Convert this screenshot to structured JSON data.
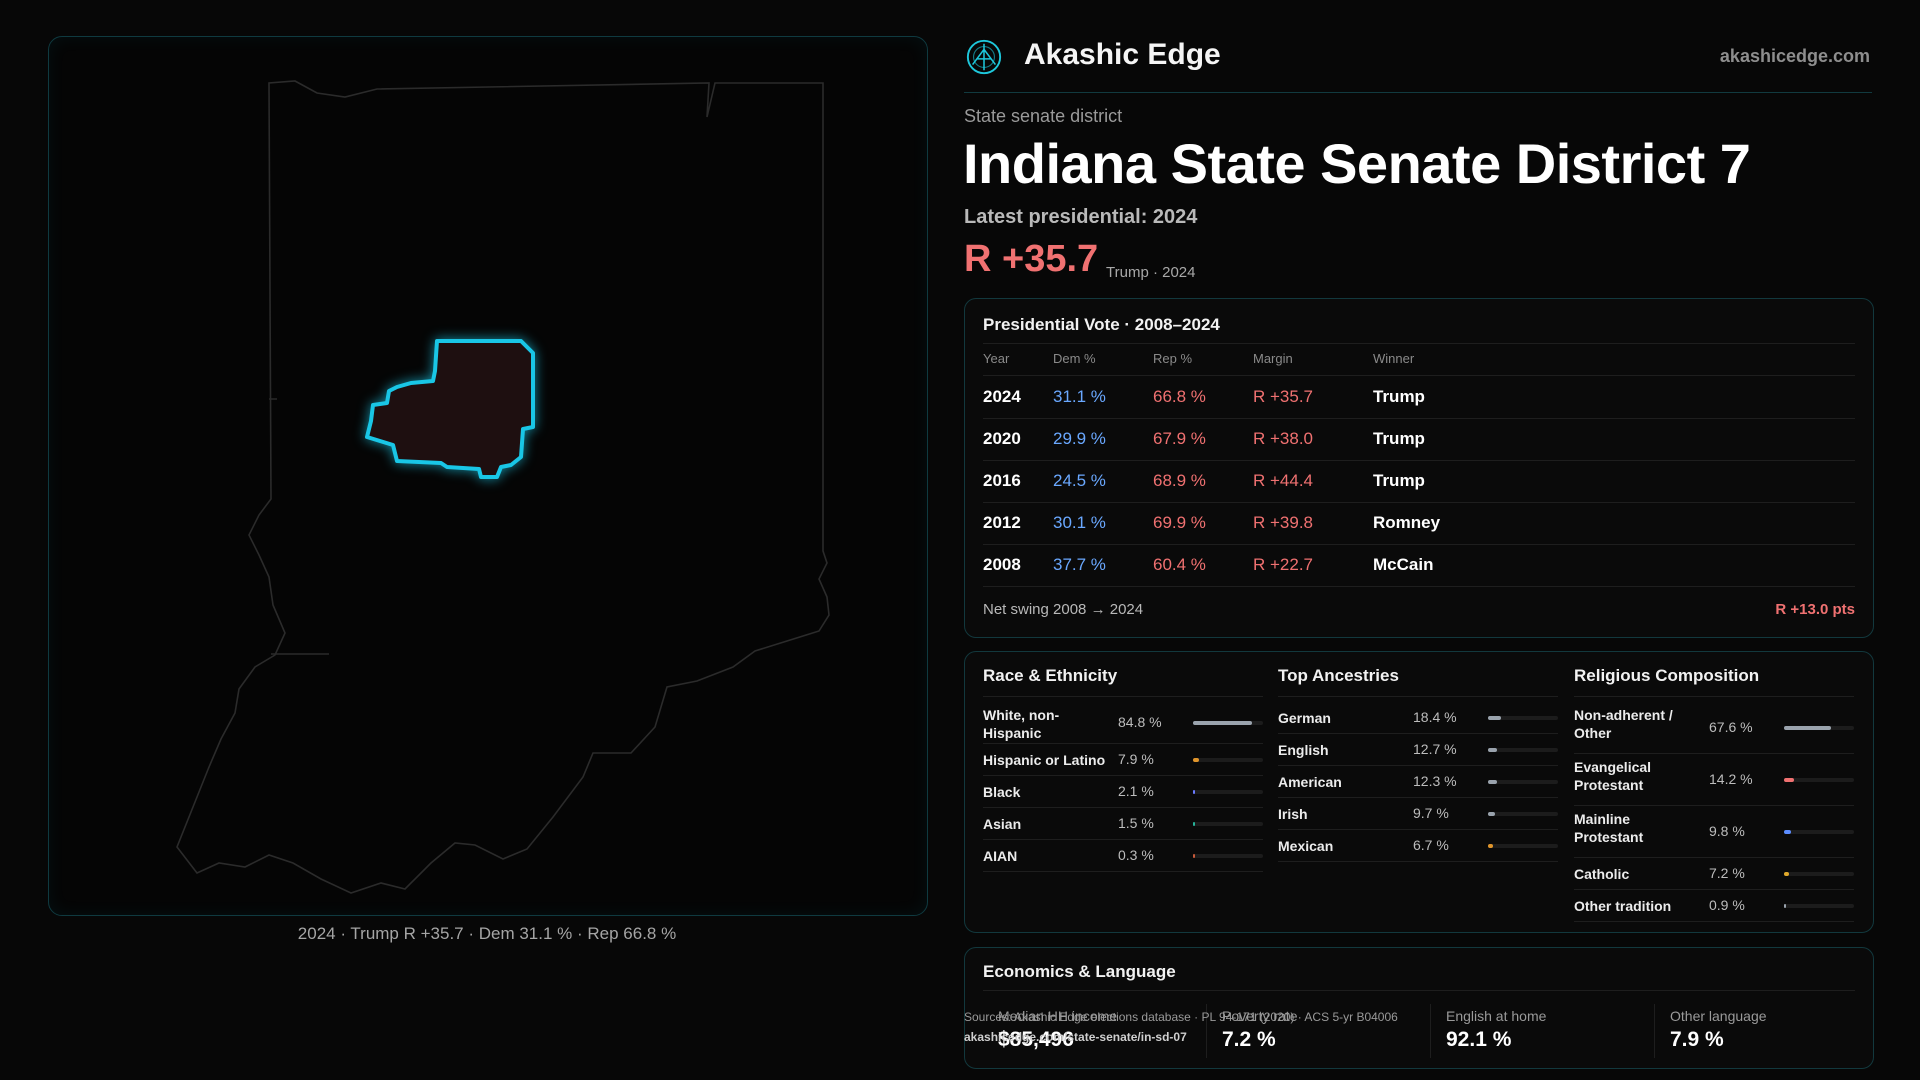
{
  "brand": {
    "name": "Akashic Edge",
    "url": "akashicedge.com",
    "logo_icon": "akashic-compass-logo-icon",
    "accent": "#1ec8dc"
  },
  "header": {
    "subtitle": "State senate district",
    "title": "Indiana State Senate District 7",
    "latest": "Latest presidential: 2024",
    "margin": "R +35.7",
    "margin_note": "Trump · 2024"
  },
  "map": {
    "caption": "2024 · Trump R +35.7 · Dem 31.1 % · Rep 66.8 %",
    "highlight_color": "#19c6e6",
    "fill_color": "#1e0f10"
  },
  "presidential": {
    "title": "Presidential Vote · 2008–2024",
    "headers": {
      "year": "Year",
      "dem": "Dem %",
      "rep": "Rep %",
      "margin": "Margin",
      "winner": "Winner"
    },
    "rows": [
      {
        "year": "2024",
        "dem": "31.1 %",
        "rep": "66.8 %",
        "margin": "R +35.7",
        "winner": "Trump"
      },
      {
        "year": "2020",
        "dem": "29.9 %",
        "rep": "67.9 %",
        "margin": "R +38.0",
        "winner": "Trump"
      },
      {
        "year": "2016",
        "dem": "24.5 %",
        "rep": "68.9 %",
        "margin": "R +44.4",
        "winner": "Trump"
      },
      {
        "year": "2012",
        "dem": "30.1 %",
        "rep": "69.9 %",
        "margin": "R +39.8",
        "winner": "Romney"
      },
      {
        "year": "2008",
        "dem": "37.7 %",
        "rep": "60.4 %",
        "margin": "R +22.7",
        "winner": "McCain"
      }
    ],
    "swing_label": "Net swing 2008 → 2024",
    "swing_value": "R +13.0 pts"
  },
  "race": {
    "title": "Race & Ethnicity",
    "items": [
      {
        "label": "White, non-Hispanic",
        "pct": "84.8 %",
        "value": 84.8,
        "color": "#9aa3ad"
      },
      {
        "label": "Hispanic or Latino",
        "pct": "7.9 %",
        "value": 7.9,
        "color": "#e0952b"
      },
      {
        "label": "Black",
        "pct": "2.1 %",
        "value": 2.1,
        "color": "#6a7bff"
      },
      {
        "label": "Asian",
        "pct": "1.5 %",
        "value": 1.5,
        "color": "#27b39a"
      },
      {
        "label": "AIAN",
        "pct": "0.3 %",
        "value": 0.3,
        "color": "#c85a3a"
      }
    ]
  },
  "ancestry": {
    "title": "Top Ancestries",
    "items": [
      {
        "label": "German",
        "pct": "18.4 %",
        "value": 18.4,
        "color": "#9aa3ad"
      },
      {
        "label": "English",
        "pct": "12.7 %",
        "value": 12.7,
        "color": "#9aa3ad"
      },
      {
        "label": "American",
        "pct": "12.3 %",
        "value": 12.3,
        "color": "#9aa3ad"
      },
      {
        "label": "Irish",
        "pct": "9.7 %",
        "value": 9.7,
        "color": "#9aa3ad"
      },
      {
        "label": "Mexican",
        "pct": "6.7 %",
        "value": 6.7,
        "color": "#e0952b"
      }
    ]
  },
  "religion": {
    "title": "Religious Composition",
    "items": [
      {
        "label": "Non-adherent / Other",
        "pct": "67.6 %",
        "value": 67.6,
        "color": "#9aa3ad"
      },
      {
        "label": "Evangelical Protestant",
        "pct": "14.2 %",
        "value": 14.2,
        "color": "#f07171"
      },
      {
        "label": "Mainline Protestant",
        "pct": "9.8 %",
        "value": 9.8,
        "color": "#5b8cff"
      },
      {
        "label": "Catholic",
        "pct": "7.2 %",
        "value": 7.2,
        "color": "#e0a92b"
      },
      {
        "label": "Other tradition",
        "pct": "0.9 %",
        "value": 0.9,
        "color": "#9aa3ad"
      }
    ]
  },
  "economics": {
    "title": "Economics & Language",
    "items": [
      {
        "label": "Median HH income",
        "value": "$85,496"
      },
      {
        "label": "Poverty rate",
        "value": "7.2 %"
      },
      {
        "label": "English at home",
        "value": "92.1 %"
      },
      {
        "label": "Other language",
        "value": "7.9 %"
      }
    ]
  },
  "sources": {
    "text": "Sources: Akashic Edge elections database · PL 94-171 (2020) · ACS 5-yr B04006",
    "url": "akashicedge.com/state-senate/in-sd-07"
  }
}
